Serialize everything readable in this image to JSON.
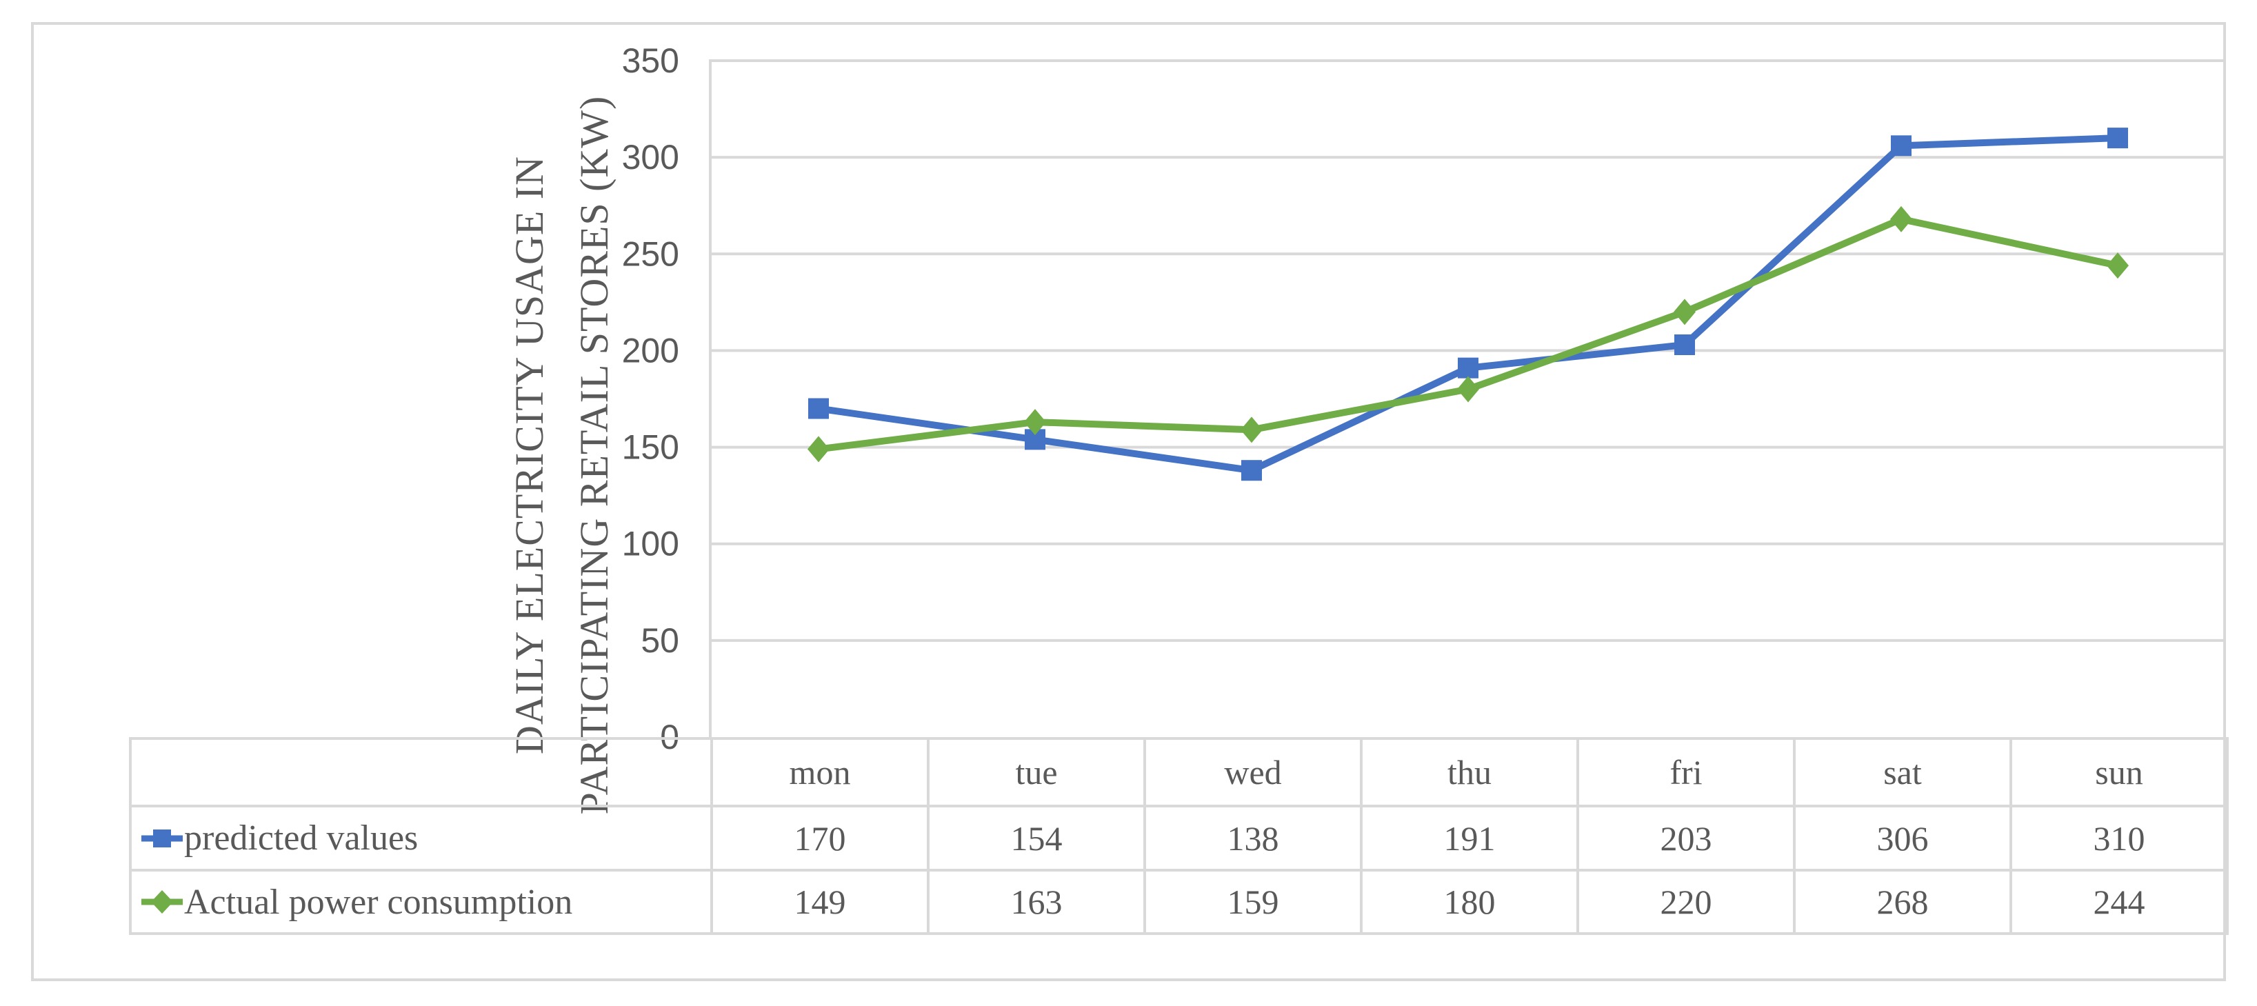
{
  "figure": {
    "y_axis_title_line1": "DAILY ELECTRICITY USAGE IN",
    "y_axis_title_line2": "PARTICIPATING RETAIL STORES (KW)"
  },
  "chart_data": {
    "type": "line",
    "title": "",
    "xlabel": "",
    "ylabel": "DAILY ELECTRICITY USAGE IN PARTICIPATING RETAIL STORES (KW)",
    "categories": [
      "mon",
      "tue",
      "wed",
      "thu",
      "fri",
      "sat",
      "sun"
    ],
    "series": [
      {
        "name": "predicted values",
        "values": [
          170,
          154,
          138,
          191,
          203,
          306,
          310
        ],
        "color": "#4472C4",
        "marker": "square"
      },
      {
        "name": "Actual power consumption",
        "values": [
          149,
          163,
          159,
          180,
          220,
          268,
          244
        ],
        "color": "#70AD47",
        "marker": "diamond"
      }
    ],
    "ylim": [
      0,
      350
    ],
    "yticks": [
      350,
      300,
      250,
      200,
      150,
      100,
      50,
      0
    ],
    "grid": true,
    "legend_position": "table-left",
    "colors": {
      "grid": "#D9D9D9",
      "border": "#D9D9D9",
      "text": "#595959"
    }
  }
}
